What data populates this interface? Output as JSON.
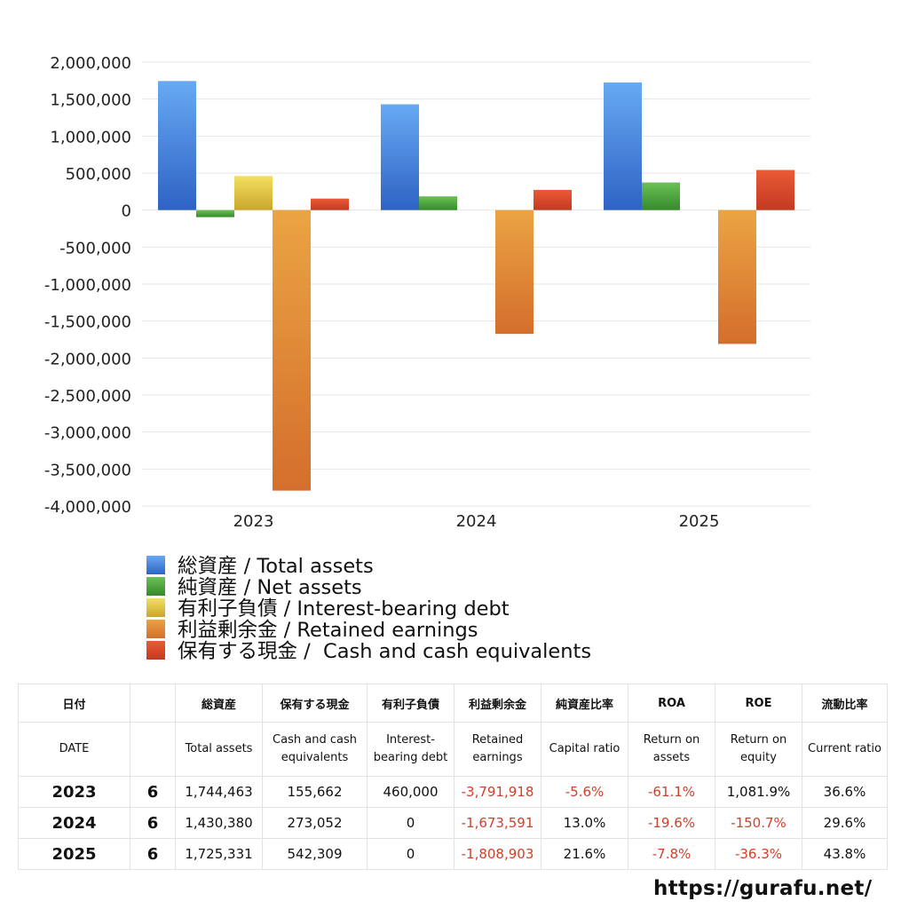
{
  "chart_data": {
    "type": "bar",
    "categories": [
      "2023",
      "2024",
      "2025"
    ],
    "series": [
      {
        "name": "総資産 / Total assets",
        "values": [
          1744463,
          1430380,
          1725331
        ],
        "color": "#3f86e0"
      },
      {
        "name": "純資産 / Net assets",
        "values": [
          -95000,
          186000,
          373000
        ],
        "color": "#4ea43a"
      },
      {
        "name": "有利子負債 / Interest-bearing debt",
        "values": [
          460000,
          0,
          0
        ],
        "color": "#e2c53c"
      },
      {
        "name": "利益剰余金 / Retained earnings",
        "values": [
          -3791918,
          -1673591,
          -1808903
        ],
        "color": "#e08a35"
      },
      {
        "name": "保有する現金 /  Cash and cash equivalents",
        "values": [
          155662,
          273052,
          542309
        ],
        "color": "#d9482a"
      }
    ],
    "ylim": [
      -4000000,
      2000000
    ],
    "yticks": [
      2000000,
      1500000,
      1000000,
      500000,
      0,
      -500000,
      -1000000,
      -1500000,
      -2000000,
      -2500000,
      -3000000,
      -3500000,
      -4000000
    ],
    "ytick_labels": [
      "2,000,000",
      "1,500,000",
      "1,000,000",
      "500,000",
      "0",
      "-500,000",
      "-1,000,000",
      "-1,500,000",
      "-2,000,000",
      "-2,500,000",
      "-3,000,000",
      "-3,500,000",
      "-4,000,000"
    ],
    "grid": true,
    "legend_position": "bottom"
  },
  "table": {
    "header_jp": [
      "日付",
      "",
      "総資産",
      "保有する現金",
      "有利子負債",
      "利益剰余金",
      "純資産比率",
      "ROA",
      "ROE",
      "流動比率"
    ],
    "header_en": [
      "DATE",
      "",
      "Total assets",
      "Cash and cash equivalents",
      "Interest-bearing debt",
      "Retained earnings",
      "Capital ratio",
      "Return on assets",
      "Return on equity",
      "Current ratio"
    ],
    "rows": [
      {
        "year": "2023",
        "months": "6",
        "total_assets": "1,744,463",
        "cash": "155,662",
        "debt": "460,000",
        "retained": "-3,791,918",
        "capital_ratio": "-5.6%",
        "roa": "-61.1%",
        "roe": "1,081.9%",
        "current_ratio": "36.6%"
      },
      {
        "year": "2024",
        "months": "6",
        "total_assets": "1,430,380",
        "cash": "273,052",
        "debt": "0",
        "retained": "-1,673,591",
        "capital_ratio": "13.0%",
        "roa": "-19.6%",
        "roe": "-150.7%",
        "current_ratio": "29.6%"
      },
      {
        "year": "2025",
        "months": "6",
        "total_assets": "1,725,331",
        "cash": "542,309",
        "debt": "0",
        "retained": "-1,808,903",
        "capital_ratio": "21.6%",
        "roa": "-7.8%",
        "roe": "-36.3%",
        "current_ratio": "43.8%"
      }
    ]
  },
  "footer": {
    "site": "https://gurafu.net/"
  }
}
